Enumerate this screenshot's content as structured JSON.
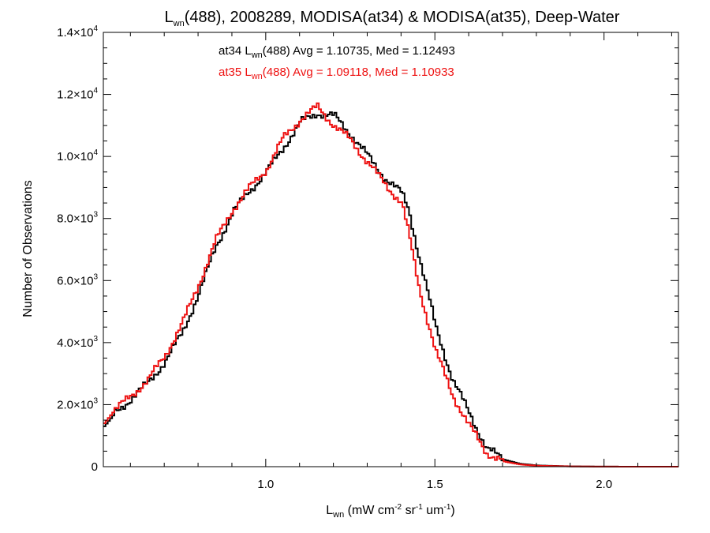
{
  "chart_data": {
    "type": "line",
    "title": {
      "pre": "L",
      "sub": "wn",
      "post": "(488), 2008289, MODISA(at34) & MODISA(at35), Deep-Water"
    },
    "xlabel": {
      "pre": "L",
      "sub": "wn",
      "mid": " (mW cm",
      "sup1": "-2",
      "mid2": " sr",
      "sup2": "-1",
      "mid3": " um",
      "sup3": "-1",
      "post": ")"
    },
    "ylabel": "Number of Observations",
    "xlim": [
      0.52,
      2.22
    ],
    "ylim": [
      0,
      14000
    ],
    "x_ticks": [
      {
        "value": 1.0,
        "label": "1.0"
      },
      {
        "value": 1.5,
        "label": "1.5"
      },
      {
        "value": 2.0,
        "label": "2.0"
      }
    ],
    "y_ticks": [
      {
        "value": 0,
        "mant": "0",
        "exp": ""
      },
      {
        "value": 2000,
        "mant": "2.0×10",
        "exp": "3"
      },
      {
        "value": 4000,
        "mant": "4.0×10",
        "exp": "3"
      },
      {
        "value": 6000,
        "mant": "6.0×10",
        "exp": "3"
      },
      {
        "value": 8000,
        "mant": "8.0×10",
        "exp": "3"
      },
      {
        "value": 10000,
        "mant": "1.0×10",
        "exp": "4"
      },
      {
        "value": 12000,
        "mant": "1.2×10",
        "exp": "4"
      },
      {
        "value": 14000,
        "mant": "1.4×10",
        "exp": "4"
      }
    ],
    "legend_position": "top-center",
    "series": [
      {
        "name": "at34",
        "color": "#000000",
        "label": {
          "pre": "at34 L",
          "sub": "wn",
          "post": "(488) Avg = 1.10735, Med = 1.12493"
        },
        "x": [
          0.52,
          0.55,
          0.6,
          0.65,
          0.7,
          0.75,
          0.8,
          0.85,
          0.9,
          0.95,
          1.0,
          1.05,
          1.1,
          1.15,
          1.2,
          1.25,
          1.3,
          1.35,
          1.4,
          1.42,
          1.45,
          1.5,
          1.55,
          1.6,
          1.65,
          1.7,
          1.75,
          1.8,
          1.9,
          2.0,
          2.22
        ],
        "y": [
          1300,
          1700,
          2200,
          2700,
          3400,
          4300,
          5600,
          7100,
          8200,
          8900,
          9500,
          10300,
          11100,
          11400,
          11300,
          10700,
          10000,
          9300,
          8800,
          8300,
          6800,
          4500,
          2800,
          1700,
          600,
          230,
          90,
          40,
          10,
          2,
          0
        ]
      },
      {
        "name": "at35",
        "color": "#ee1111",
        "label": {
          "pre": "at35 L",
          "sub": "wn",
          "post": "(488) Avg = 1.09118, Med = 1.10933"
        },
        "x": [
          0.52,
          0.55,
          0.6,
          0.65,
          0.7,
          0.75,
          0.8,
          0.85,
          0.9,
          0.95,
          1.0,
          1.05,
          1.1,
          1.15,
          1.2,
          1.25,
          1.3,
          1.35,
          1.4,
          1.42,
          1.45,
          1.5,
          1.55,
          1.6,
          1.65,
          1.7,
          1.75,
          1.8,
          1.9,
          2.0,
          2.22
        ],
        "y": [
          1400,
          1800,
          2300,
          2800,
          3600,
          4600,
          5900,
          7300,
          8300,
          9000,
          9600,
          10600,
          11200,
          11600,
          11000,
          10500,
          9800,
          9100,
          8500,
          7500,
          5800,
          3700,
          2300,
          1300,
          450,
          170,
          70,
          30,
          8,
          2,
          0
        ]
      }
    ]
  }
}
